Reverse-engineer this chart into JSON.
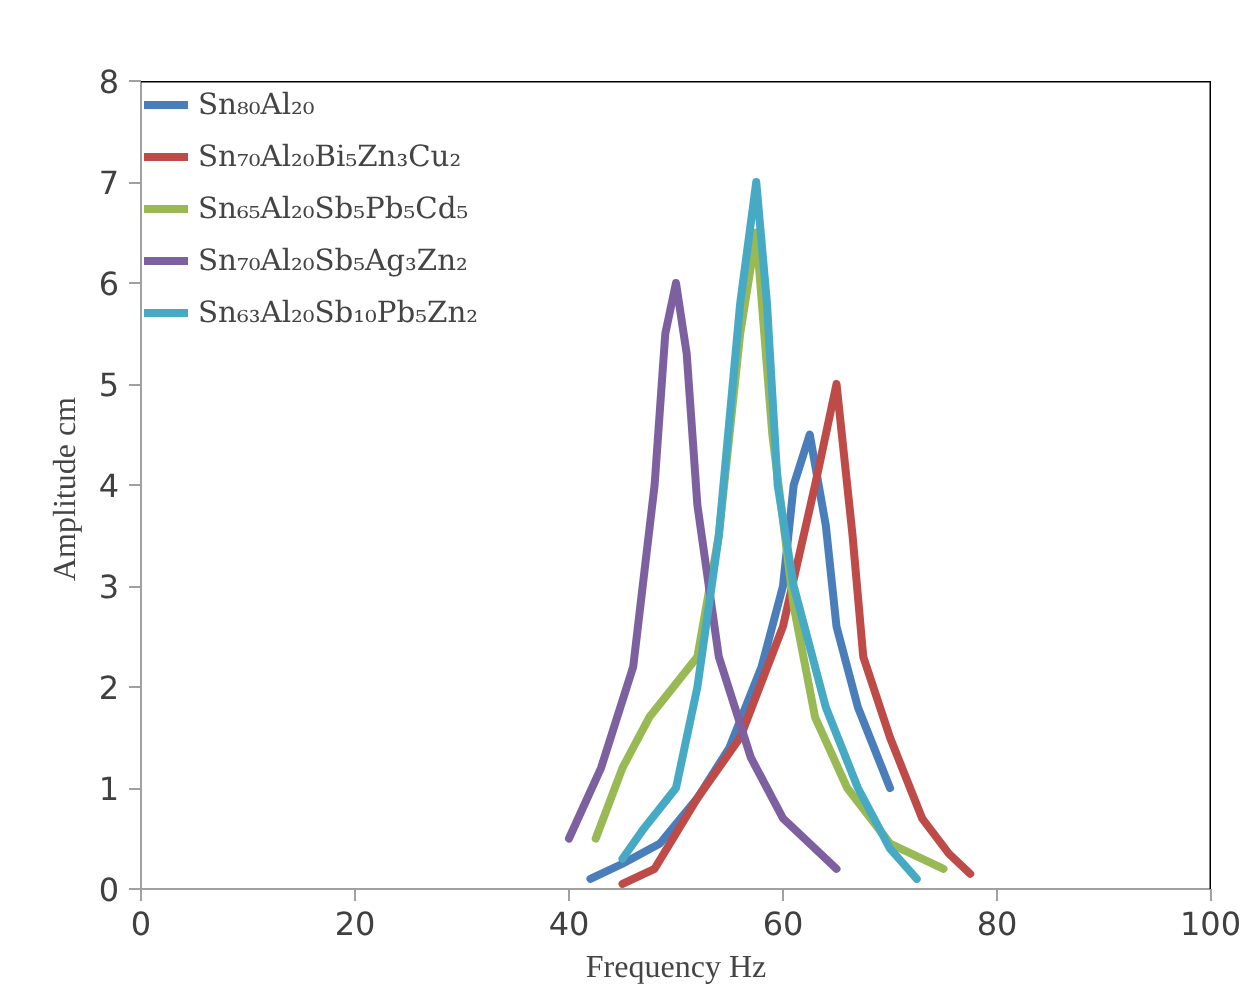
{
  "chart_data": {
    "type": "line",
    "xlabel": "Frequency Hz",
    "ylabel": "Amplitude  cm",
    "xlim": [
      0,
      100
    ],
    "ylim": [
      0,
      8
    ],
    "xticks": [
      0,
      20,
      40,
      60,
      80,
      100
    ],
    "yticks": [
      0,
      1,
      2,
      3,
      4,
      5,
      6,
      7,
      8
    ],
    "grid": false,
    "legend": "top left",
    "marker": "none",
    "line_style": "solid",
    "series": [
      {
        "name": "Sn₈₀Al₂₀",
        "color": "#4a7ebb",
        "x": [
          42,
          45,
          48.5,
          52,
          55,
          58,
          60,
          61,
          62.5,
          64,
          65,
          67,
          70
        ],
        "values": [
          0.1,
          0.25,
          0.45,
          0.9,
          1.4,
          2.2,
          3.0,
          4.0,
          4.5,
          3.6,
          2.6,
          1.8,
          1.0
        ]
      },
      {
        "name": "Sn₇₀Al₂₀Bi₅Zn₃Cu₂",
        "color": "#be4b48",
        "x": [
          45,
          48,
          52,
          56,
          60,
          63,
          65,
          66.5,
          67.5,
          70,
          73,
          75.5,
          77.5
        ],
        "values": [
          0.05,
          0.2,
          0.9,
          1.5,
          2.6,
          4.0,
          5.0,
          3.5,
          2.3,
          1.5,
          0.7,
          0.35,
          0.15
        ]
      },
      {
        "name": "Sn₆₅Al₂₀Sb₅Pb₅Cd₅",
        "color": "#98b954",
        "x": [
          42.5,
          45,
          47.5,
          52,
          54,
          56,
          57.5,
          59,
          61,
          63,
          66,
          70,
          75
        ],
        "values": [
          0.5,
          1.2,
          1.7,
          2.3,
          3.5,
          5.5,
          6.5,
          4.5,
          2.8,
          1.7,
          1.0,
          0.45,
          0.2
        ]
      },
      {
        "name": "Sn₇₀Al₂₀Sb₅Ag₃Zn₂",
        "color": "#7d60a0",
        "x": [
          40,
          43,
          46,
          48,
          49,
          50,
          51,
          52,
          54,
          57,
          60,
          63,
          65
        ],
        "values": [
          0.5,
          1.2,
          2.2,
          4.0,
          5.5,
          6.0,
          5.3,
          3.8,
          2.3,
          1.3,
          0.7,
          0.4,
          0.2
        ]
      },
      {
        "name": "Sn₆₃Al₂₀Sb₁₀Pb₅Zn₂",
        "color": "#46aac5",
        "x": [
          45,
          47,
          50,
          52,
          54,
          56,
          57.5,
          58.5,
          59.5,
          61,
          64,
          67,
          70,
          72.5
        ],
        "values": [
          0.3,
          0.6,
          1.0,
          2.0,
          3.5,
          5.8,
          7.0,
          5.8,
          4.0,
          3.0,
          1.8,
          1.0,
          0.4,
          0.1
        ]
      }
    ]
  }
}
